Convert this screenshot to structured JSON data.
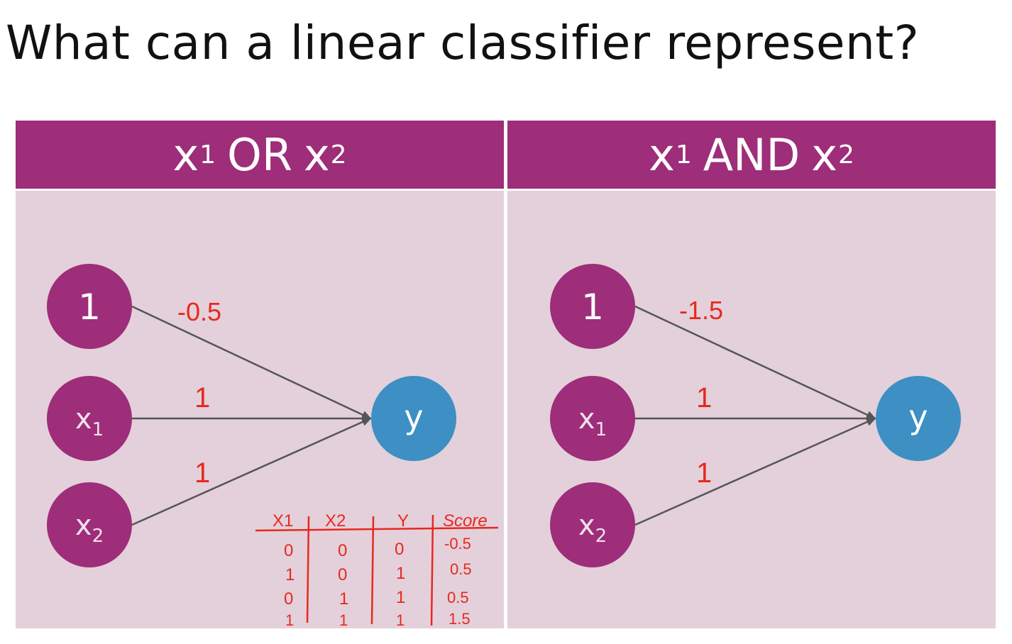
{
  "title": "What can a linear classifier represent?",
  "colors": {
    "header_bg": "#9e2d7a",
    "panel_bg": "#e3d0da",
    "input_node": "#9e2d7a",
    "output_node": "#3d8fc4",
    "annotation": "#e8281e"
  },
  "panels": [
    {
      "header": {
        "var_a": "x",
        "sub_a": "1",
        "op": "OR",
        "var_b": "x",
        "sub_b": "2"
      },
      "nodes": {
        "bias": "1",
        "x1": "x",
        "x1_sub": "1",
        "x2": "x",
        "x2_sub": "2",
        "y": "y"
      },
      "weights": {
        "bias": "-0.5",
        "x1": "1",
        "x2": "1"
      },
      "truth_table": {
        "headers": [
          "X1",
          "X2",
          "Y",
          "Score"
        ],
        "rows": [
          [
            "0",
            "0",
            "0",
            "-0.5"
          ],
          [
            "1",
            "0",
            "1",
            "0.5"
          ],
          [
            "0",
            "1",
            "1",
            "0.5"
          ],
          [
            "1",
            "1",
            "1",
            "1.5"
          ]
        ]
      }
    },
    {
      "header": {
        "var_a": "x",
        "sub_a": "1",
        "op": "AND",
        "var_b": "x",
        "sub_b": "2"
      },
      "nodes": {
        "bias": "1",
        "x1": "x",
        "x1_sub": "1",
        "x2": "x",
        "x2_sub": "2",
        "y": "y"
      },
      "weights": {
        "bias": "-1.5",
        "x1": "1",
        "x2": "1"
      }
    }
  ]
}
